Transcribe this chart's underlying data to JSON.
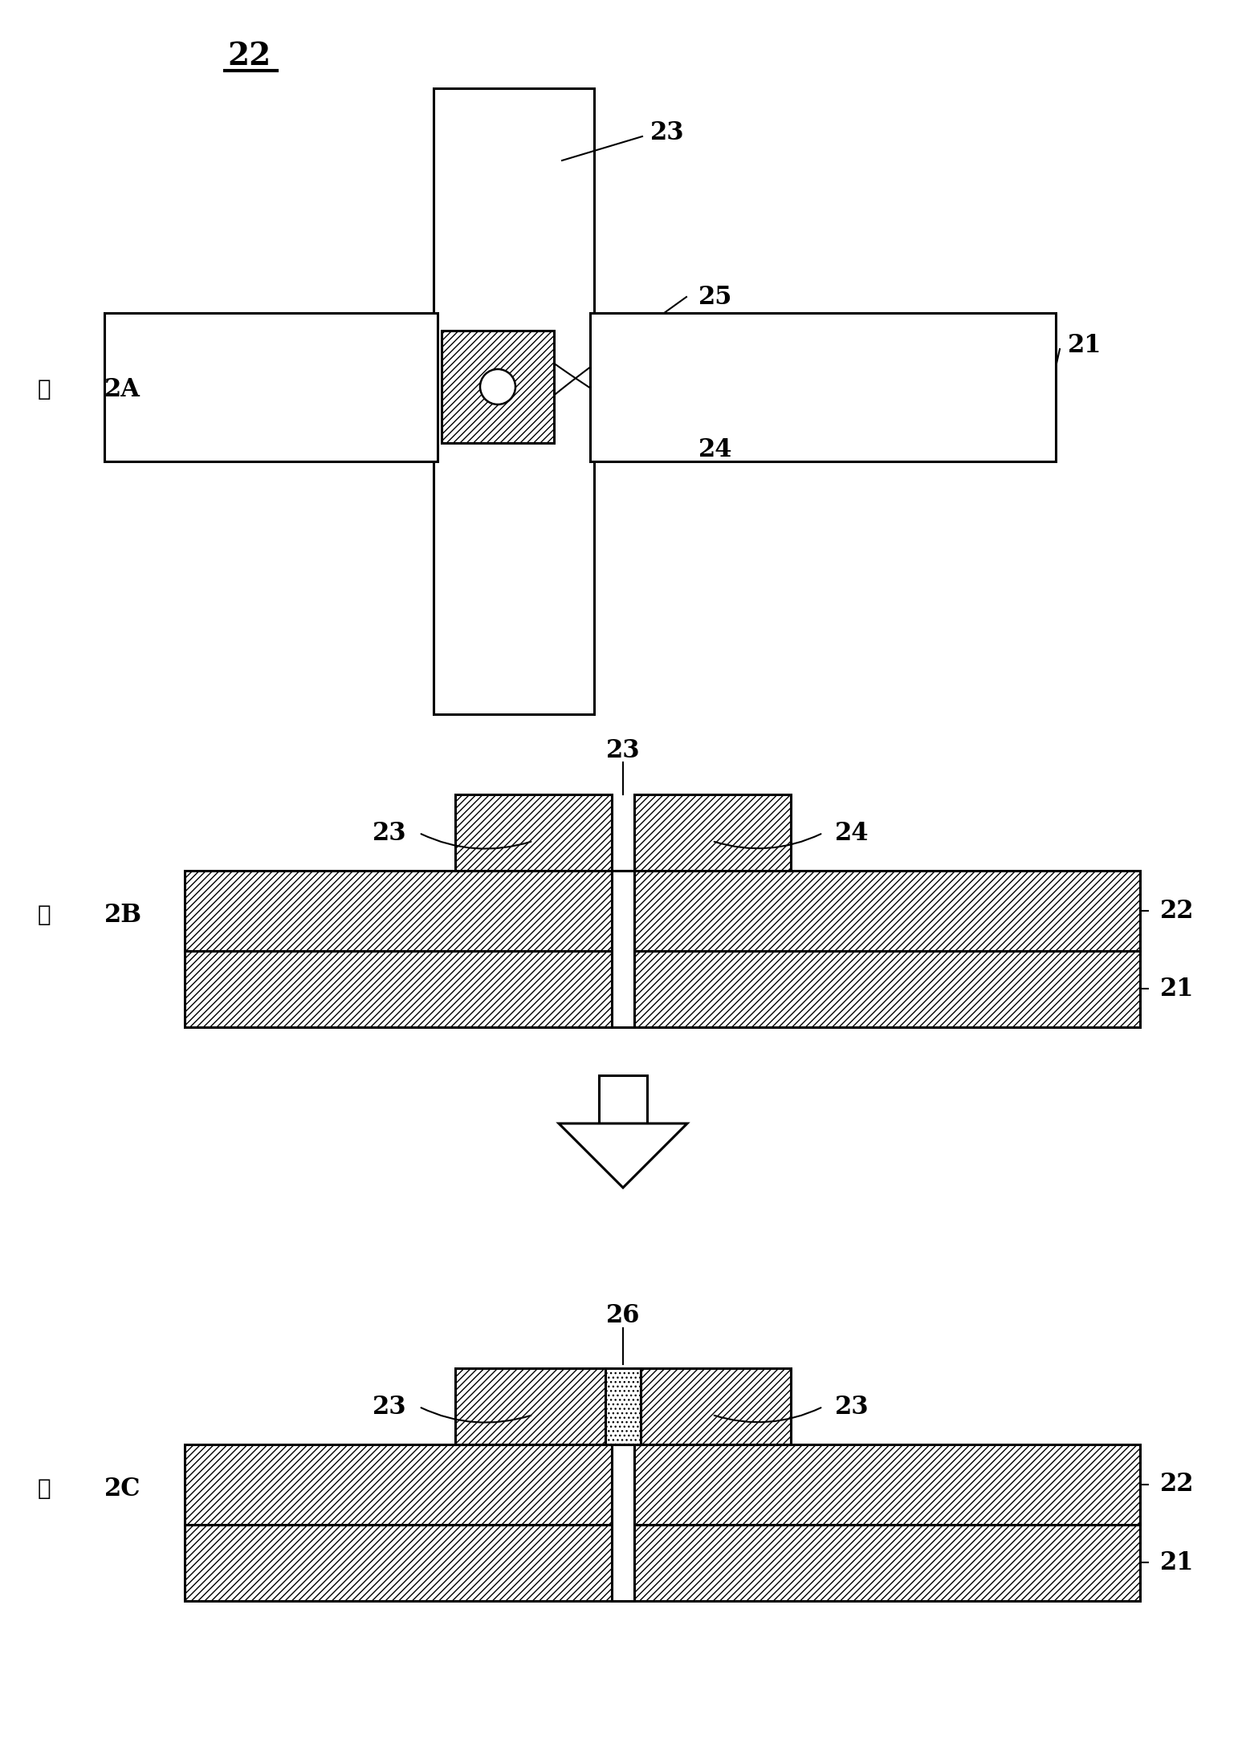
{
  "bg_color": "#ffffff",
  "line_color": "#000000",
  "fig_width": 15.52,
  "fig_height": 21.82,
  "label_22": "22",
  "label_21": "21",
  "label_23": "23",
  "label_24": "24",
  "label_25": "25",
  "label_26": "26",
  "label_2A": "2A",
  "label_2B": "2B",
  "label_2C": "2C",
  "label_zu": "図"
}
